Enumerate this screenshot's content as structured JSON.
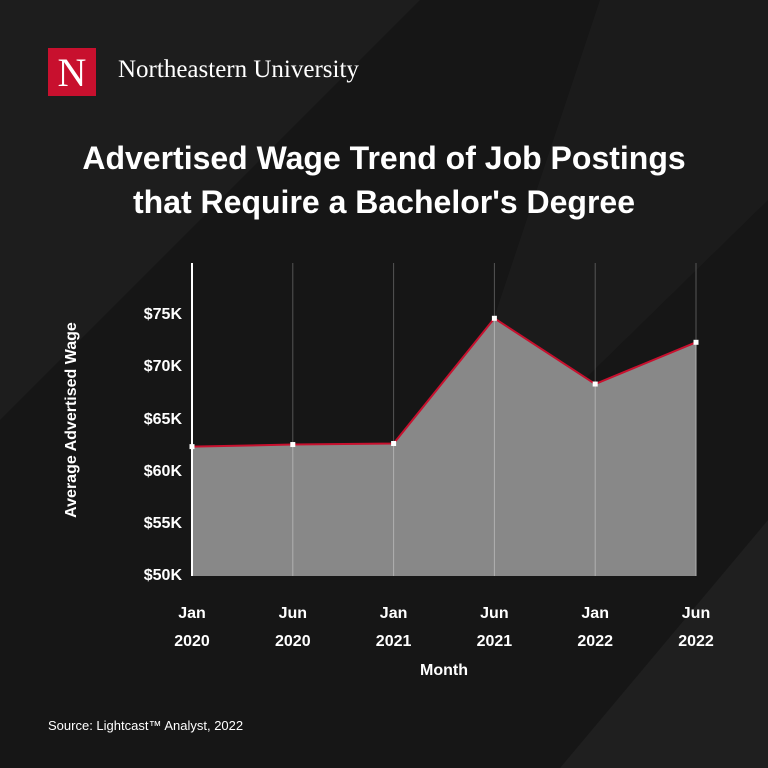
{
  "brand": {
    "logo_letter": "N",
    "name": "Northeastern University"
  },
  "chart_data": {
    "type": "area",
    "title": "Advertised Wage Trend of Job Postings that Require a Bachelor's Degree",
    "y_label": "Average Advertised Wage",
    "x_label": "Month",
    "categories": [
      "Jan 2020",
      "Jun 2020",
      "Jan 2021",
      "Jun 2021",
      "Jan 2022",
      "Jun 2022"
    ],
    "values": [
      62400,
      62600,
      62700,
      74700,
      68400,
      72400
    ],
    "color": "#c8102e",
    "fill": "#8c8c8c",
    "ylim": [
      50000,
      80000
    ],
    "yticks": [
      {
        "value": 50000,
        "label": "$50K"
      },
      {
        "value": 55000,
        "label": "$55K"
      },
      {
        "value": 60000,
        "label": "$60K"
      },
      {
        "value": 65000,
        "label": "$65K"
      },
      {
        "value": 70000,
        "label": "$70K"
      },
      {
        "value": 75000,
        "label": "$75K"
      }
    ],
    "grid": true
  },
  "source": "Source: Lightcast™ Analyst, 2022"
}
